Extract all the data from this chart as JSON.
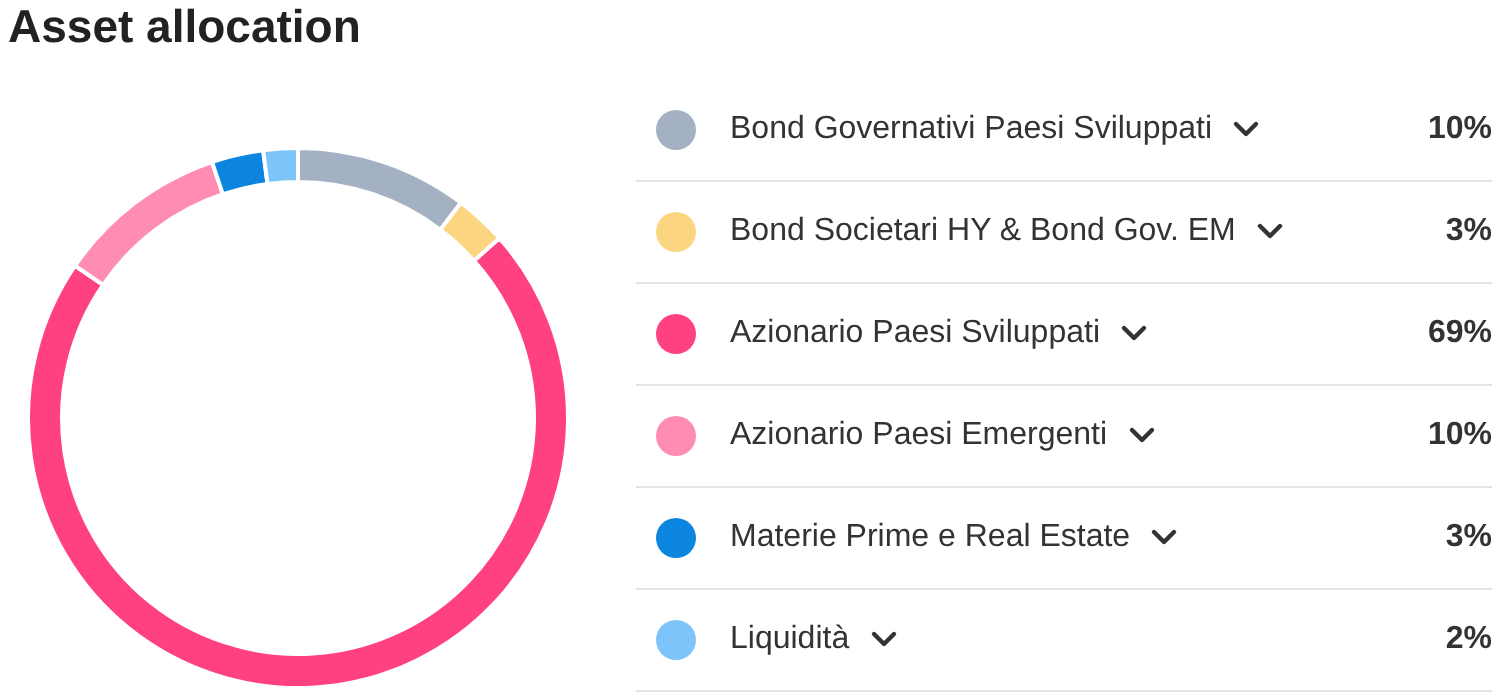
{
  "chart_data": {
    "type": "donut",
    "title": "Asset allocation",
    "categories": [
      "Bond Governativi Paesi Sviluppati",
      "Bond Societari HY & Bond Gov. EM",
      "Azionario Paesi Sviluppati",
      "Azionario Paesi Emergenti",
      "Materie Prime e Real Estate",
      "Liquidità"
    ],
    "values": [
      10,
      3,
      69,
      10,
      3,
      2
    ],
    "value_labels": [
      "10%",
      "3%",
      "69%",
      "10%",
      "3%",
      "2%"
    ],
    "colors": [
      "#a3b1c2",
      "#fcd581",
      "#ff4081",
      "#ff8cb4",
      "#0b85e0",
      "#7dc4fa"
    ],
    "legend": "right"
  }
}
